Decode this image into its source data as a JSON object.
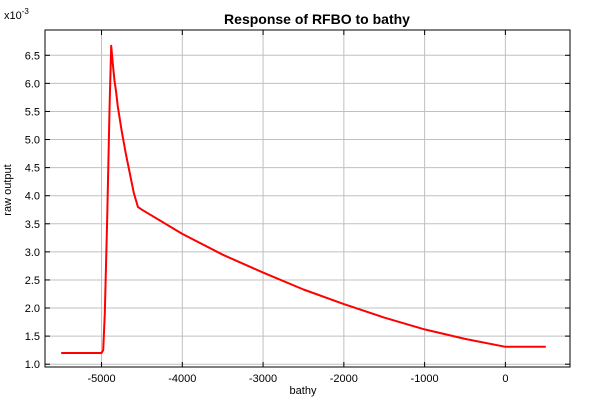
{
  "chart_data": {
    "type": "line",
    "title": "Response of RFBO to bathy",
    "xlabel": "bathy",
    "ylabel": "raw output",
    "y_multiplier_label": "x10",
    "y_multiplier_exponent": "-3",
    "xlim": [
      -5700,
      800
    ],
    "ylim": [
      0.95,
      6.95
    ],
    "grid": true,
    "xticks": [
      {
        "value": -5000,
        "label": "-5000"
      },
      {
        "value": -4000,
        "label": "-4000"
      },
      {
        "value": -3000,
        "label": "-3000"
      },
      {
        "value": -2000,
        "label": "-2000"
      },
      {
        "value": -1000,
        "label": "-1000"
      },
      {
        "value": 0,
        "label": "0"
      }
    ],
    "yticks": [
      {
        "value": 1.0,
        "label": "1.0"
      },
      {
        "value": 1.5,
        "label": "1.5"
      },
      {
        "value": 2.0,
        "label": "2.0"
      },
      {
        "value": 2.5,
        "label": "2.5"
      },
      {
        "value": 3.0,
        "label": "3.0"
      },
      {
        "value": 3.5,
        "label": "3.5"
      },
      {
        "value": 4.0,
        "label": "4.0"
      },
      {
        "value": 4.5,
        "label": "4.5"
      },
      {
        "value": 5.0,
        "label": "5.0"
      },
      {
        "value": 5.5,
        "label": "5.5"
      },
      {
        "value": 6.0,
        "label": "6.0"
      },
      {
        "value": 6.5,
        "label": "6.5"
      }
    ],
    "series": [
      {
        "color": "#ff0000",
        "x": [
          -5500,
          -5000,
          -4980,
          -4960,
          -4930,
          -4900,
          -4880,
          -4860,
          -4840,
          -4820,
          -4800,
          -4750,
          -4700,
          -4650,
          -4600,
          -4550,
          -4500,
          -4000,
          -3500,
          -3000,
          -2500,
          -2000,
          -1500,
          -1000,
          -500,
          0,
          500
        ],
        "y": [
          1.2,
          1.2,
          1.25,
          1.9,
          3.6,
          5.6,
          6.67,
          6.35,
          6.05,
          5.85,
          5.6,
          5.15,
          4.75,
          4.4,
          4.05,
          3.8,
          3.75,
          3.32,
          2.95,
          2.63,
          2.33,
          2.07,
          1.83,
          1.62,
          1.45,
          1.31,
          1.31
        ]
      }
    ]
  }
}
